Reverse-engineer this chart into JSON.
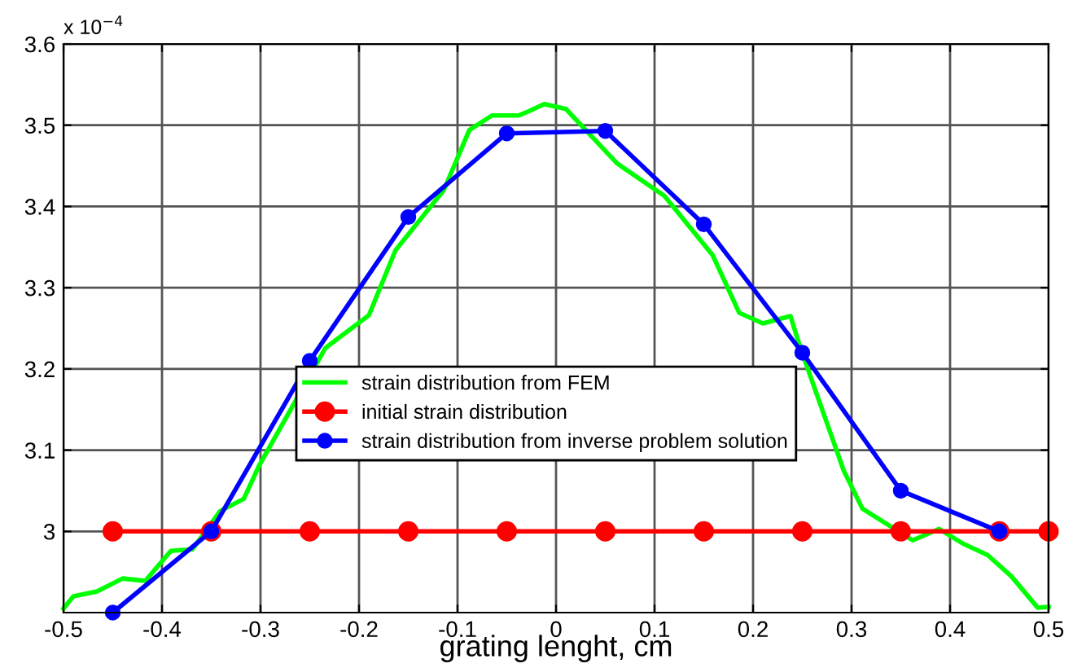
{
  "chart_data": {
    "type": "line",
    "xlabel": "grating lenght, cm",
    "annotations": [
      "x 10$^{−4}$"
    ],
    "series": [
      {
        "name": "strain distribution from FEM",
        "color": "#00ff00",
        "marker": "none",
        "x": [
          -0.5,
          -0.49,
          -0.466,
          -0.44,
          -0.417,
          -0.391,
          -0.369,
          -0.341,
          -0.317,
          -0.301,
          -0.234,
          -0.19,
          -0.163,
          -0.114,
          -0.088,
          -0.065,
          -0.038,
          -0.028,
          -0.012,
          0.01,
          0.062,
          0.11,
          0.159,
          0.186,
          0.21,
          0.238,
          0.248,
          0.292,
          0.311,
          0.362,
          0.389,
          0.413,
          0.438,
          0.462,
          0.489,
          0.5
        ],
        "values": [
          2.905,
          2.92,
          2.926,
          2.942,
          2.939,
          2.976,
          2.978,
          3.025,
          3.04,
          3.082,
          3.226,
          3.266,
          3.346,
          3.42,
          3.494,
          3.512,
          3.512,
          3.517,
          3.526,
          3.52,
          3.453,
          3.413,
          3.34,
          3.269,
          3.256,
          3.265,
          3.226,
          3.075,
          3.028,
          2.989,
          3.003,
          2.985,
          2.971,
          2.945,
          2.906,
          2.907
        ]
      },
      {
        "name": "initial strain distribution",
        "color": "#ff0000",
        "marker": "circle",
        "x": [
          -0.45,
          -0.35,
          -0.25,
          -0.15,
          -0.05,
          0.05,
          0.15,
          0.25,
          0.35,
          0.45,
          0.5
        ],
        "values": [
          3,
          3,
          3,
          3,
          3,
          3,
          3,
          3,
          3,
          3,
          3
        ]
      },
      {
        "name": "strain distribution from inverse problem solution",
        "color": "#0000ff",
        "marker": "circle",
        "x": [
          -0.45,
          -0.35,
          -0.25,
          -0.15,
          -0.05,
          0.05,
          0.15,
          0.25,
          0.35,
          0.45
        ],
        "values": [
          2.9,
          3.0,
          3.21,
          3.387,
          3.49,
          3.493,
          3.378,
          3.22,
          3.05,
          3.0
        ]
      }
    ],
    "xlim": [
      -0.5,
      0.5
    ],
    "xticks": [
      -0.5,
      -0.4,
      -0.3,
      -0.2,
      -0.1,
      {
        "value": 0,
        "label": "0"
      },
      0.1,
      0.2,
      0.3,
      0.4,
      0.5
    ],
    "ylim": [
      2.9,
      3.6
    ],
    "yticks": [
      {
        "value": 3,
        "label": "3"
      },
      3.1,
      3.2,
      3.3,
      3.4,
      3.5,
      3.6
    ],
    "grid": true,
    "legend": "bottom",
    "line_style": "solid"
  }
}
